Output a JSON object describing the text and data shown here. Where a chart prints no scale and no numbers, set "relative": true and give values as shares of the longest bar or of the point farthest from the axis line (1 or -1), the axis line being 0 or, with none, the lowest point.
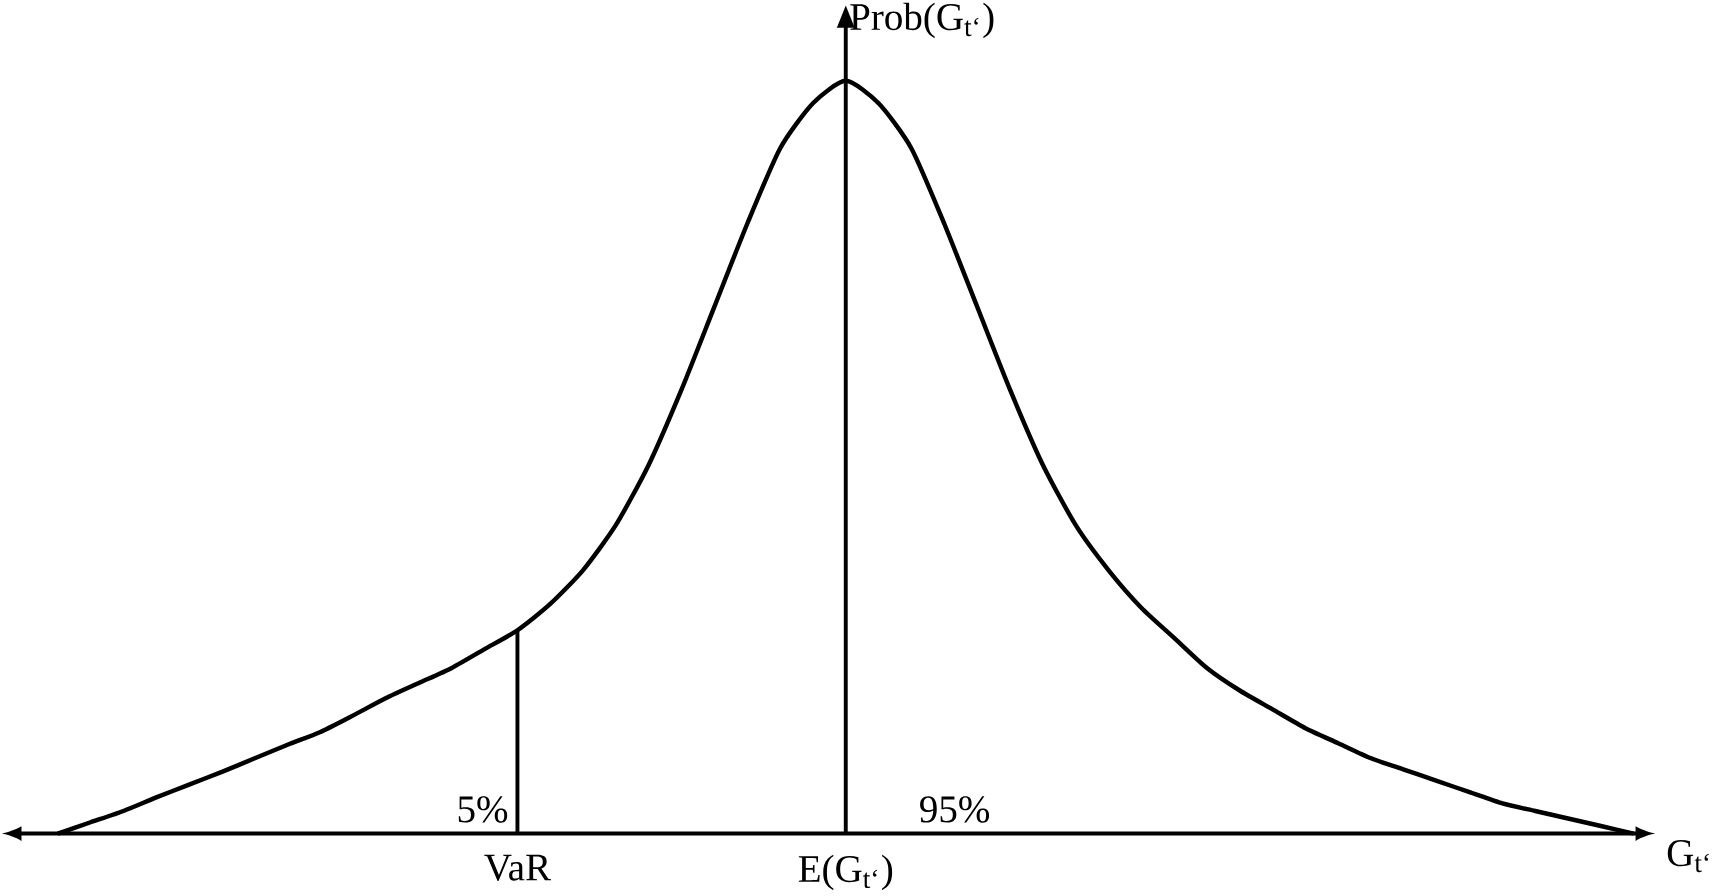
{
  "chart_data": {
    "type": "line",
    "relative": true,
    "xlabel": "G$_{t‘}$",
    "ylabel": "Prob(G$_{t‘}$)",
    "categories": [
      null,
      null,
      null,
      null,
      null,
      null,
      null,
      null,
      null,
      null,
      null,
      null,
      null,
      null,
      "VaR",
      null,
      null,
      null,
      null,
      null,
      null,
      null,
      null,
      null,
      "E(G$_{t‘}$)",
      null,
      null,
      null,
      null,
      null,
      null,
      null,
      null,
      null,
      null,
      null,
      null,
      null,
      null,
      null,
      null,
      null,
      null,
      null,
      null,
      null,
      null,
      null,
      null
    ],
    "series": [
      {
        "color": "#000000",
        "values": [
          0,
          0.015,
          0.03,
          0.048,
          0.065,
          0.082,
          0.1,
          0.118,
          0.135,
          0.157,
          0.18,
          0.2,
          0.22,
          0.245,
          0.27,
          0.305,
          0.35,
          0.41,
          0.49,
          0.59,
          0.7,
          0.81,
          0.91,
          0.97,
          1.0,
          0.97,
          0.91,
          0.81,
          0.7,
          0.59,
          0.49,
          0.41,
          0.35,
          0.3,
          0.26,
          0.22,
          0.19,
          0.165,
          0.14,
          0.12,
          0.1,
          0.085,
          0.07,
          0.055,
          0.04,
          0.03,
          0.02,
          0.01,
          0
        ]
      }
    ],
    "ref_lines": [
      {
        "axis": "x",
        "value": "VaR",
        "color": "#000000"
      }
    ],
    "annotations": [
      "5%",
      "95%"
    ],
    "line_style": "solid",
    "marker": "none"
  }
}
